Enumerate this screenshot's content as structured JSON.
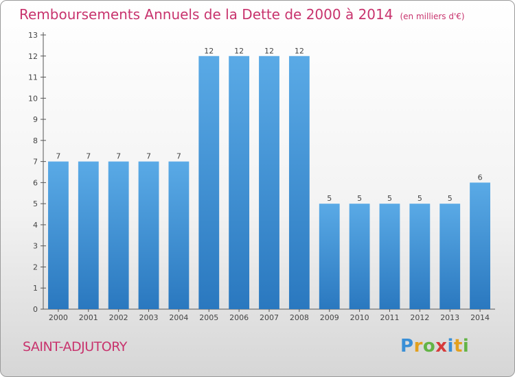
{
  "title": "Remboursements Annuels de la Dette de 2000 à 2014",
  "unit_note": "(en milliers d'€)",
  "commune": "SAINT-ADJUTORY",
  "brand": "Proxiti",
  "colors": {
    "bar_top": "#5aaae6",
    "bar_bottom": "#2a78bf",
    "title": "#c8336d"
  },
  "chart_data": {
    "type": "bar",
    "title": "Remboursements Annuels de la Dette de 2000 à 2014",
    "categories": [
      "2000",
      "2001",
      "2002",
      "2003",
      "2004",
      "2005",
      "2006",
      "2007",
      "2008",
      "2009",
      "2010",
      "2011",
      "2012",
      "2013",
      "2014"
    ],
    "values": [
      7,
      7,
      7,
      7,
      7,
      12,
      12,
      12,
      12,
      5,
      5,
      5,
      5,
      5,
      6
    ],
    "ylim": [
      0,
      13
    ],
    "yticks": [
      0,
      1,
      2,
      3,
      4,
      5,
      6,
      7,
      8,
      9,
      10,
      11,
      12,
      13
    ],
    "grid": false,
    "legend": "none"
  }
}
